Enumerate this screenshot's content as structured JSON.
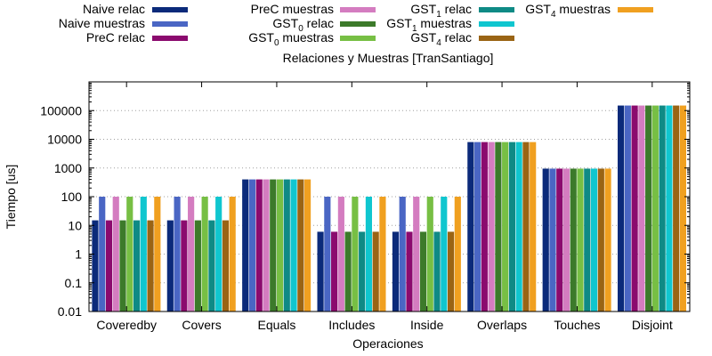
{
  "chart_data": {
    "type": "bar",
    "title": "Relaciones y Muestras [TranSantiago]",
    "xlabel": "Operaciones",
    "ylabel": "Tiempo [us]",
    "yscale": "log",
    "ylim": [
      0.01,
      1000000
    ],
    "ytick_labels": [
      "0.01",
      "0.1",
      "1",
      "10",
      "100",
      "1000",
      "10000",
      "100000"
    ],
    "ytick_values": [
      0.01,
      0.1,
      1,
      10,
      100,
      1000,
      10000,
      100000
    ],
    "grid": "horizontal dotted",
    "legend_placement": "top",
    "categories": [
      "Coveredby",
      "Covers",
      "Equals",
      "Includes",
      "Inside",
      "Overlaps",
      "Touches",
      "Disjoint"
    ],
    "series": [
      {
        "name": "Naive relac",
        "base": "Naive relac",
        "sub": "",
        "post": "",
        "color": "#0b2a7a",
        "values": [
          15,
          15,
          400,
          6,
          6,
          8000,
          950,
          150000
        ]
      },
      {
        "name": "Naive muestras",
        "base": "Naive muestras",
        "sub": "",
        "post": "",
        "color": "#4a66c4",
        "values": [
          100,
          100,
          400,
          100,
          100,
          8000,
          950,
          150000
        ]
      },
      {
        "name": "PreC relac",
        "base": "PreC relac",
        "sub": "",
        "post": "",
        "color": "#8b0a6e",
        "values": [
          15,
          15,
          400,
          6,
          6,
          8000,
          950,
          150000
        ]
      },
      {
        "name": "PreC muestras",
        "base": "PreC muestras",
        "sub": "",
        "post": "",
        "color": "#d47cc0",
        "values": [
          100,
          100,
          400,
          100,
          100,
          8000,
          950,
          150000
        ]
      },
      {
        "name": "GST0 relac",
        "base": "GST",
        "sub": "0",
        "post": " relac",
        "color": "#3c7a2a",
        "values": [
          15,
          15,
          400,
          6,
          6,
          8000,
          950,
          150000
        ]
      },
      {
        "name": "GST0 muestras",
        "base": "GST",
        "sub": "0",
        "post": " muestras",
        "color": "#77bf44",
        "values": [
          100,
          100,
          400,
          100,
          100,
          8000,
          950,
          150000
        ]
      },
      {
        "name": "GST1 relac",
        "base": "GST",
        "sub": "1",
        "post": " relac",
        "color": "#0f8a85",
        "values": [
          15,
          15,
          400,
          6,
          6,
          8000,
          950,
          150000
        ]
      },
      {
        "name": "GST1 muestras",
        "base": "GST",
        "sub": "1",
        "post": " muestras",
        "color": "#10c6cf",
        "values": [
          100,
          100,
          400,
          100,
          100,
          8000,
          950,
          150000
        ]
      },
      {
        "name": "GST4 relac",
        "base": "GST",
        "sub": "4",
        "post": " relac",
        "color": "#9a6414",
        "values": [
          15,
          15,
          400,
          6,
          6,
          8000,
          950,
          150000
        ]
      },
      {
        "name": "GST4 muestras",
        "base": "GST",
        "sub": "4",
        "post": " muestras",
        "color": "#f0a020",
        "values": [
          100,
          100,
          400,
          100,
          100,
          8000,
          950,
          150000
        ]
      }
    ]
  }
}
